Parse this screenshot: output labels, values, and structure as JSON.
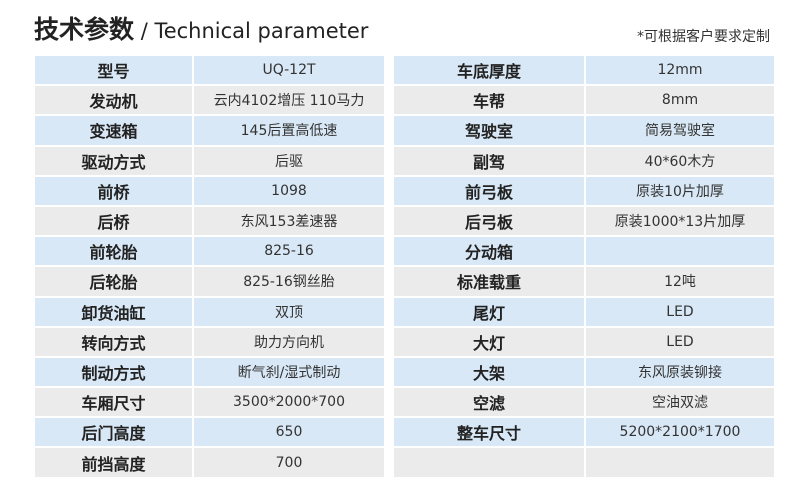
{
  "title": {
    "cn": "技术参数",
    "sep": " / ",
    "en": "Technical parameter"
  },
  "note": "*可根据客户要求定制",
  "colors": {
    "row_blue": "#d9e8f6",
    "row_gray": "#ebebeb"
  },
  "left": [
    [
      "型号",
      "UQ-12T"
    ],
    [
      "发动机",
      "云内4102增压 110马力"
    ],
    [
      "变速箱",
      "145后置高低速"
    ],
    [
      "驱动方式",
      "后驱"
    ],
    [
      "前桥",
      "1098"
    ],
    [
      "后桥",
      "东风153差速器"
    ],
    [
      "前轮胎",
      "825-16"
    ],
    [
      "后轮胎",
      "825-16钢丝胎"
    ],
    [
      "卸货油缸",
      "双顶"
    ],
    [
      "转向方式",
      "助力方向机"
    ],
    [
      "制动方式",
      "断气刹/湿式制动"
    ],
    [
      "车厢尺寸",
      "3500*2000*700"
    ],
    [
      "后门高度",
      "650"
    ],
    [
      "前挡高度",
      "700"
    ]
  ],
  "right": [
    [
      "车底厚度",
      "12mm"
    ],
    [
      "车帮",
      "8mm"
    ],
    [
      "驾驶室",
      "简易驾驶室"
    ],
    [
      "副驾",
      "40*60木方"
    ],
    [
      "前弓板",
      "原装10片加厚"
    ],
    [
      "后弓板",
      "原装1000*13片加厚"
    ],
    [
      "分动箱",
      ""
    ],
    [
      "标准载重",
      "12吨"
    ],
    [
      "尾灯",
      "LED"
    ],
    [
      "大灯",
      "LED"
    ],
    [
      "大架",
      "东风原装铆接"
    ],
    [
      "空滤",
      "空油双滤"
    ],
    [
      "整车尺寸",
      "5200*2100*1700"
    ],
    [
      "",
      ""
    ]
  ]
}
